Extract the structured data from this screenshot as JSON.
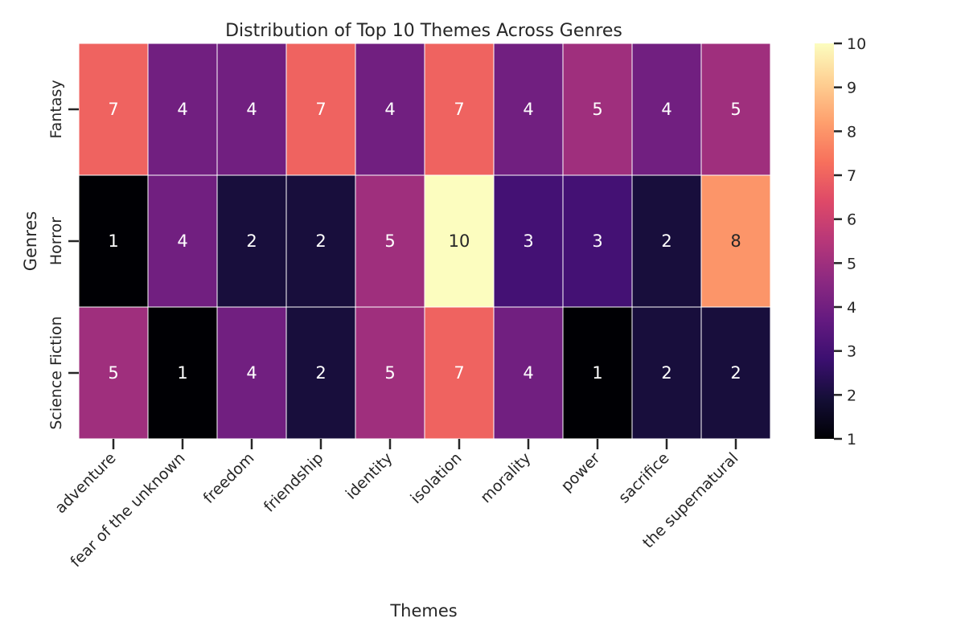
{
  "chart_data": {
    "type": "heatmap",
    "title": "Distribution of Top 10 Themes Across Genres",
    "xlabel": "Themes",
    "ylabel": "Genres",
    "x_categories": [
      "adventure",
      "fear of the unknown",
      "freedom",
      "friendship",
      "identity",
      "isolation",
      "morality",
      "power",
      "sacrifice",
      "the supernatural"
    ],
    "y_categories": [
      "Fantasy",
      "Horror",
      "Science Fiction"
    ],
    "values": [
      [
        7,
        4,
        4,
        7,
        4,
        7,
        4,
        5,
        4,
        5
      ],
      [
        1,
        4,
        2,
        2,
        5,
        10,
        3,
        3,
        2,
        8
      ],
      [
        5,
        1,
        4,
        2,
        5,
        7,
        4,
        1,
        2,
        2
      ]
    ],
    "colorbar": {
      "min": 1,
      "max": 10,
      "ticks": [
        1,
        2,
        3,
        4,
        5,
        6,
        7,
        8,
        9,
        10
      ],
      "colormap": "magma"
    },
    "grid": false,
    "legend": "colorbar-right"
  }
}
